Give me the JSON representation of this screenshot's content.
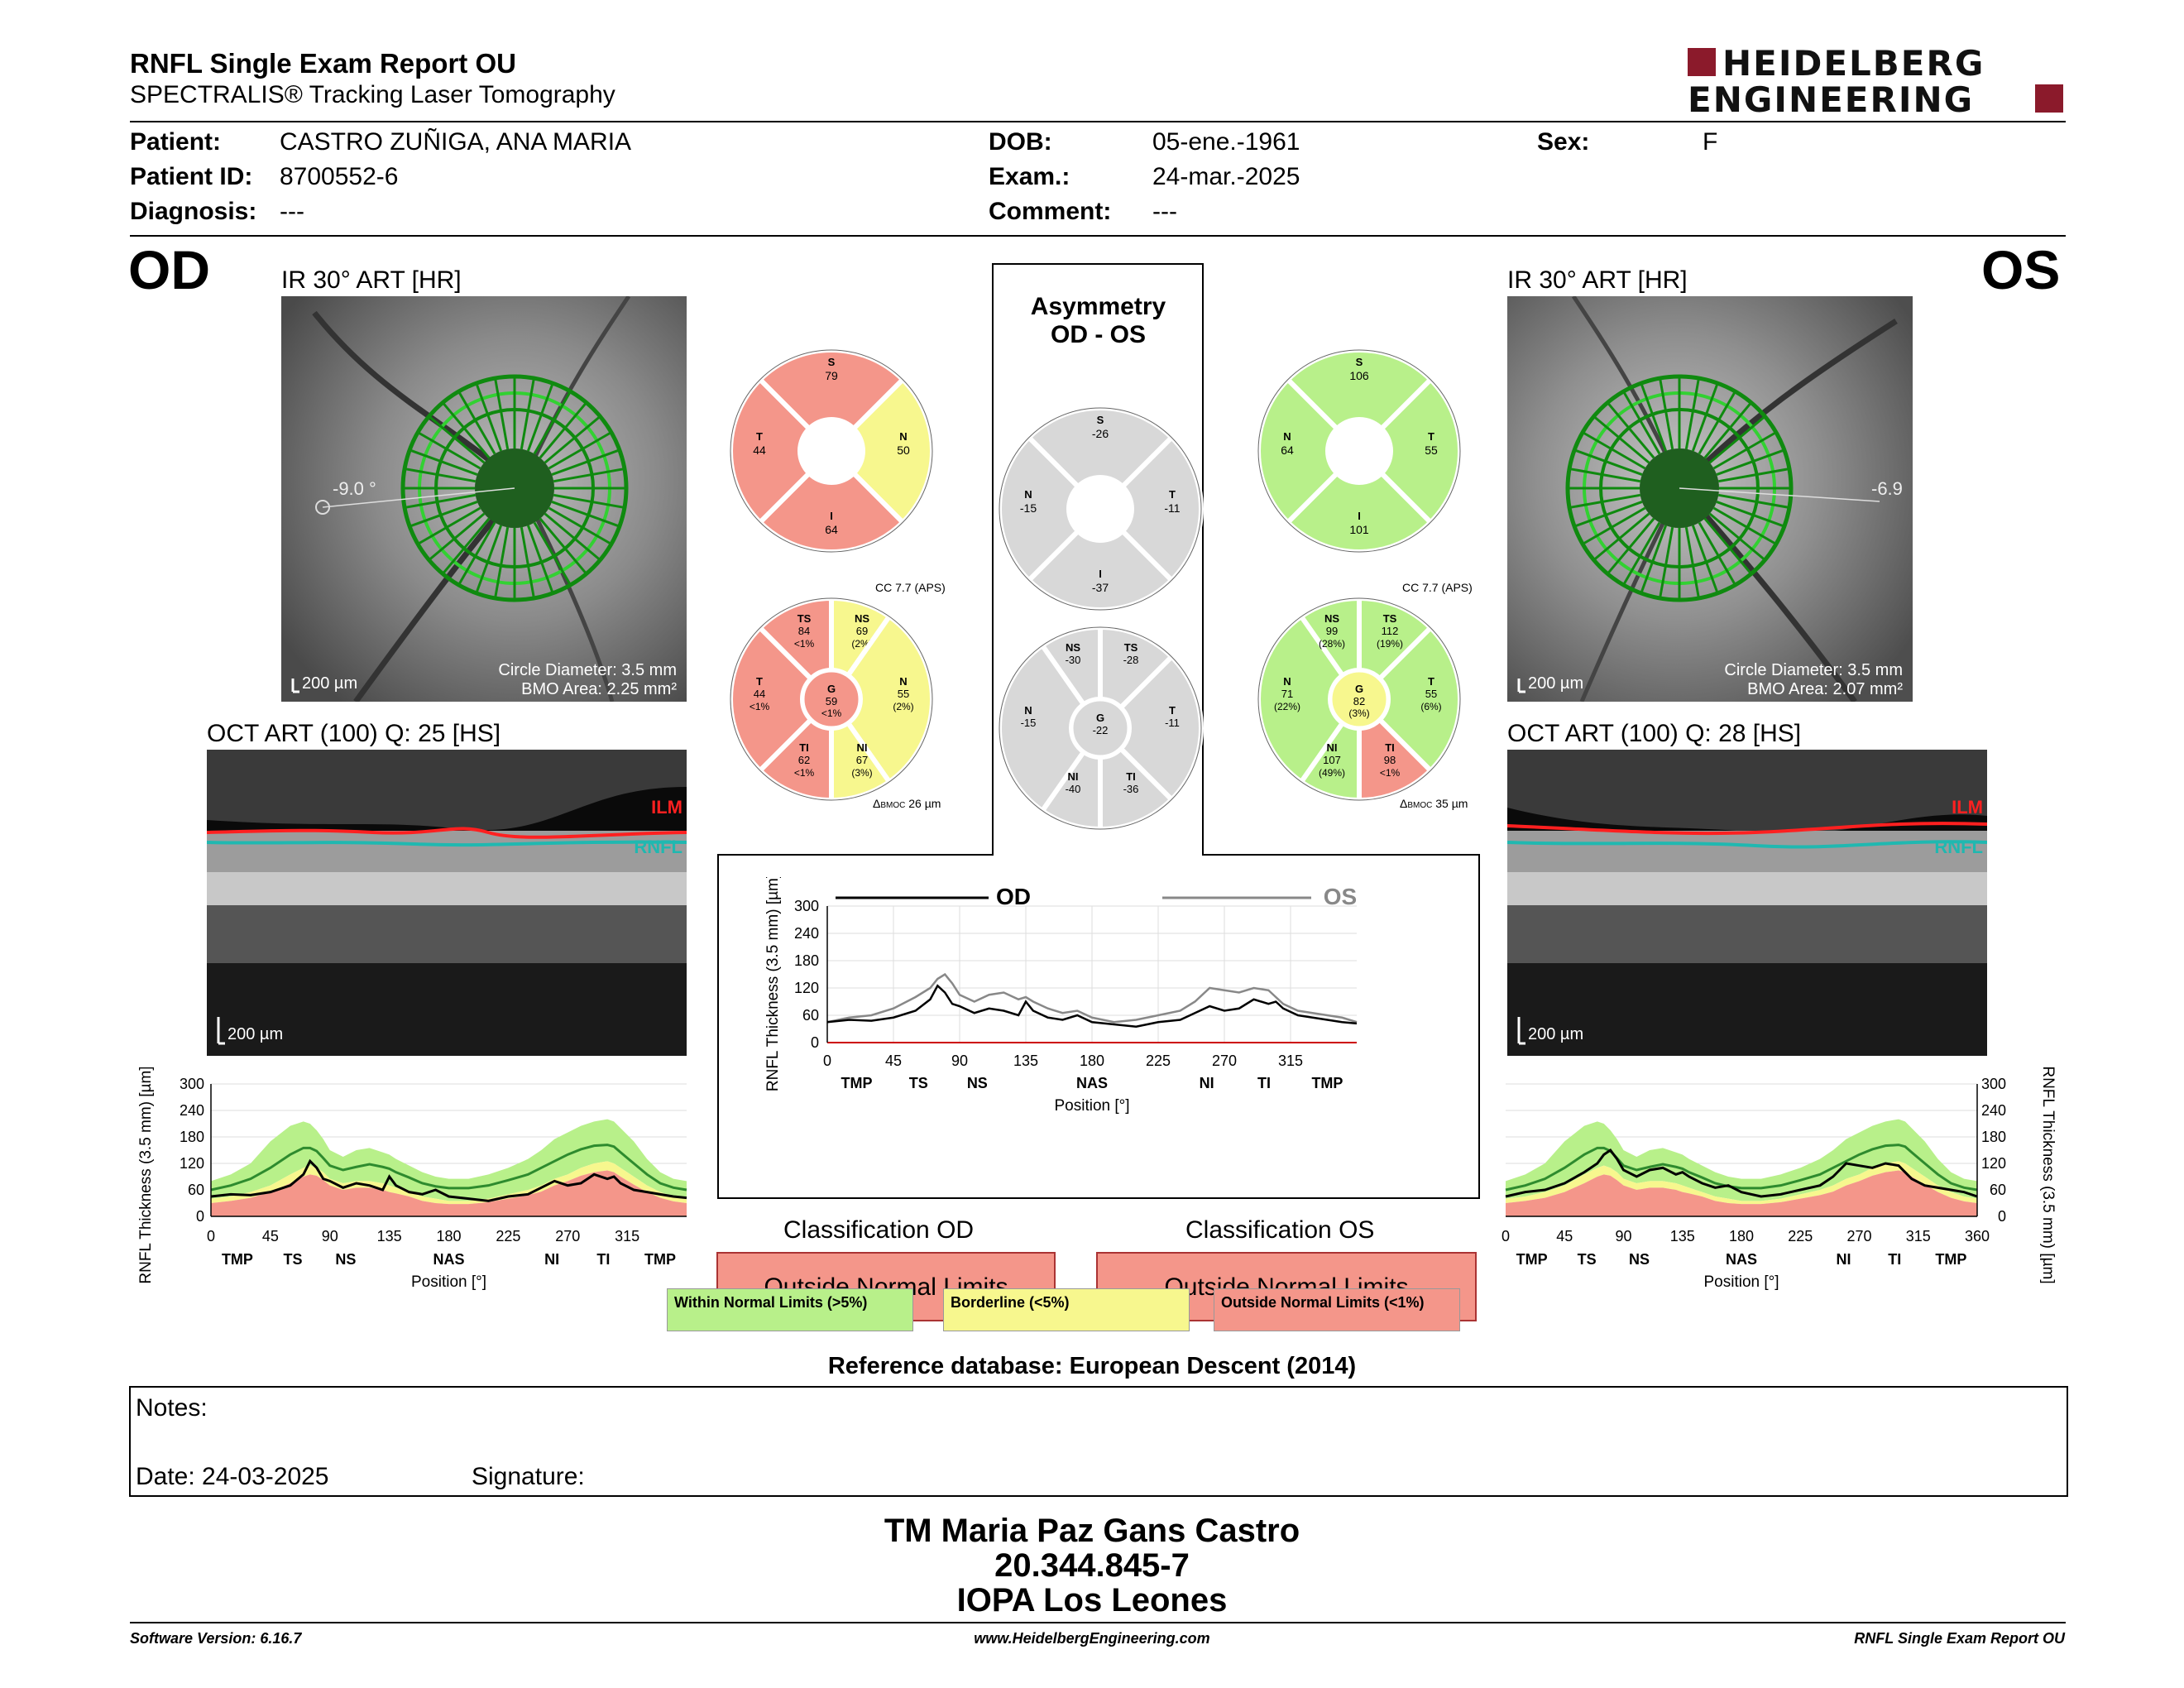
{
  "header": {
    "title": "RNFL Single Exam Report OU",
    "subtitle": "SPECTRALIS® Tracking Laser Tomography",
    "logo_line1": "HEIDELBERG",
    "logo_line2": "ENGINEERING"
  },
  "patient": {
    "patient_label": "Patient:",
    "patient_value": "CASTRO ZUÑIGA, ANA MARIA",
    "id_label": "Patient ID:",
    "id_value": "8700552-6",
    "diag_label": "Diagnosis:",
    "diag_value": "---",
    "dob_label": "DOB:",
    "dob_value": "05-ene.-1961",
    "exam_label": "Exam.:",
    "exam_value": "24-mar.-2025",
    "comment_label": "Comment:",
    "comment_value": "---",
    "sex_label": "Sex:",
    "sex_value": "F"
  },
  "od": {
    "eye": "OD",
    "ir_title": "IR 30° ART [HR]",
    "angle": "-9.0 °",
    "scale": "200 µm",
    "circle_diameter": "Circle Diameter: 3.5 mm",
    "bmo_area": "BMO Area: 2.25 mm²",
    "oct_title": "OCT ART (100) Q: 25 [HS]",
    "oct_scale": "200 µm",
    "ilm": "ILM",
    "rnfl": "RNFL",
    "sectors4": {
      "S": "79",
      "N": "50",
      "I": "64",
      "T": "44"
    },
    "sectors6": {
      "cc": "CC 7.7 (APS)",
      "bmoc": "26 µm",
      "bmoc_label": "BMOC",
      "TS": {
        "v": "84",
        "p": "<1%"
      },
      "NS": {
        "v": "69",
        "p": "(2%)"
      },
      "T": {
        "v": "44",
        "p": "<1%"
      },
      "G": {
        "v": "59",
        "p": "<1%"
      },
      "N": {
        "v": "55",
        "p": "(2%)"
      },
      "TI": {
        "v": "62",
        "p": "<1%"
      },
      "NI": {
        "v": "67",
        "p": "(3%)"
      }
    },
    "classification_title": "Classification OD",
    "classification": "Outside Normal Limits"
  },
  "os": {
    "eye": "OS",
    "ir_title": "IR 30° ART [HR]",
    "angle": "-6.9",
    "scale": "200 µm",
    "circle_diameter": "Circle Diameter: 3.5 mm",
    "bmo_area": "BMO Area: 2.07 mm²",
    "oct_title": "OCT ART (100) Q: 28 [HS]",
    "oct_scale": "200 µm",
    "ilm": "ILM",
    "rnfl": "RNFL",
    "sectors4": {
      "S": "106",
      "N": "64",
      "I": "101",
      "T": "55"
    },
    "sectors6": {
      "cc": "CC 7.7 (APS)",
      "bmoc": "35 µm",
      "bmoc_label": "BMOC",
      "NS": {
        "v": "99",
        "p": "(28%)"
      },
      "TS": {
        "v": "112",
        "p": "(19%)"
      },
      "N": {
        "v": "71",
        "p": "(22%)"
      },
      "G": {
        "v": "82",
        "p": "(3%)"
      },
      "T": {
        "v": "55",
        "p": "(6%)"
      },
      "NI": {
        "v": "107",
        "p": "(49%)"
      },
      "TI": {
        "v": "98",
        "p": "<1%"
      }
    },
    "classification_title": "Classification OS",
    "classification": "Outside Normal Limits"
  },
  "asymmetry": {
    "title1": "Asymmetry",
    "title2": "OD - OS",
    "sectors4": {
      "S": "-26",
      "N": "-15",
      "T": "-11",
      "I": "-37"
    },
    "sectors6": {
      "NS": "-30",
      "TS": "-28",
      "N": "-15",
      "G": "-22",
      "T": "-11",
      "NI": "-40",
      "TI": "-36"
    },
    "legend_od": "OD",
    "legend_os": "OS"
  },
  "chart_data": [
    {
      "type": "line",
      "name": "OD RNFL profile",
      "xlabel": "Position [°]",
      "ylabel": "RNFL Thickness (3.5 mm) [µm]",
      "ylim": [
        0,
        300
      ],
      "xlim": [
        0,
        360
      ],
      "yticks": [
        0,
        60,
        120,
        180,
        240,
        300
      ],
      "xticks": [
        0,
        45,
        90,
        135,
        180,
        225,
        270,
        315
      ],
      "sector_labels": [
        "TMP",
        "TS",
        "NS",
        "NAS",
        "NI",
        "TI",
        "TMP"
      ],
      "sector_label_positions": [
        20,
        62,
        102,
        180,
        258,
        297,
        340
      ],
      "x": [
        0,
        15,
        30,
        45,
        60,
        70,
        75,
        80,
        85,
        90,
        100,
        110,
        120,
        130,
        135,
        140,
        150,
        160,
        170,
        180,
        195,
        210,
        225,
        240,
        250,
        260,
        270,
        280,
        290,
        300,
        305,
        310,
        320,
        330,
        340,
        350,
        360
      ],
      "series": [
        {
          "name": "OD",
          "values": [
            45,
            50,
            48,
            55,
            70,
            95,
            125,
            110,
            85,
            80,
            65,
            75,
            70,
            60,
            90,
            70,
            55,
            50,
            60,
            45,
            40,
            35,
            45,
            50,
            65,
            80,
            70,
            75,
            95,
            85,
            90,
            75,
            60,
            55,
            50,
            45,
            42
          ]
        }
      ],
      "normal_band": {
        "green_upper": [
          80,
          95,
          120,
          170,
          205,
          215,
          210,
          195,
          175,
          150,
          135,
          150,
          155,
          145,
          140,
          130,
          115,
          100,
          90,
          85,
          85,
          95,
          110,
          130,
          150,
          175,
          190,
          205,
          215,
          220,
          215,
          200,
          170,
          130,
          100,
          85,
          80
        ],
        "yellow_upper": [
          40,
          45,
          55,
          70,
          95,
          110,
          115,
          110,
          100,
          85,
          75,
          80,
          80,
          75,
          70,
          65,
          55,
          45,
          40,
          35,
          35,
          40,
          50,
          60,
          70,
          85,
          95,
          110,
          120,
          125,
          120,
          110,
          90,
          70,
          55,
          45,
          40
        ],
        "red_upper": [
          30,
          35,
          42,
          55,
          75,
          90,
          95,
          92,
          82,
          70,
          60,
          65,
          65,
          60,
          55,
          52,
          45,
          35,
          30,
          28,
          28,
          32,
          40,
          48,
          56,
          70,
          80,
          92,
          100,
          104,
          100,
          90,
          72,
          55,
          42,
          34,
          30
        ],
        "mean": [
          60,
          70,
          85,
          110,
          140,
          155,
          155,
          148,
          132,
          115,
          105,
          112,
          118,
          112,
          108,
          100,
          88,
          75,
          68,
          64,
          64,
          70,
          82,
          95,
          110,
          125,
          140,
          152,
          160,
          162,
          158,
          145,
          120,
          95,
          75,
          65,
          60
        ]
      }
    },
    {
      "type": "line",
      "name": "OS RNFL profile",
      "xlabel": "Position [°]",
      "ylabel": "RNFL Thickness (3.5 mm) [µm]",
      "ylim": [
        0,
        300
      ],
      "xlim": [
        0,
        360
      ],
      "yticks": [
        0,
        60,
        120,
        180,
        240,
        300
      ],
      "xticks": [
        0,
        45,
        90,
        135,
        180,
        225,
        270,
        315,
        360
      ],
      "sector_labels": [
        "TMP",
        "TS",
        "NS",
        "NAS",
        "NI",
        "TI",
        "TMP"
      ],
      "sector_label_positions": [
        20,
        62,
        102,
        180,
        258,
        297,
        340
      ],
      "x": [
        0,
        15,
        30,
        45,
        60,
        70,
        75,
        80,
        85,
        90,
        100,
        110,
        120,
        130,
        135,
        140,
        150,
        160,
        170,
        180,
        195,
        210,
        225,
        240,
        250,
        260,
        270,
        280,
        290,
        300,
        305,
        310,
        320,
        330,
        340,
        350,
        360
      ],
      "series": [
        {
          "name": "OS",
          "values": [
            45,
            55,
            60,
            75,
            100,
            120,
            140,
            150,
            130,
            105,
            90,
            105,
            110,
            95,
            100,
            90,
            75,
            65,
            70,
            55,
            45,
            50,
            60,
            70,
            90,
            120,
            115,
            110,
            120,
            115,
            100,
            85,
            70,
            65,
            60,
            55,
            45
          ]
        }
      ],
      "normal_band": {
        "green_upper": [
          80,
          95,
          120,
          170,
          205,
          215,
          210,
          195,
          175,
          150,
          135,
          150,
          155,
          145,
          140,
          130,
          115,
          100,
          90,
          85,
          85,
          95,
          110,
          130,
          150,
          175,
          190,
          205,
          215,
          220,
          215,
          200,
          170,
          130,
          100,
          85,
          80
        ],
        "yellow_upper": [
          40,
          45,
          55,
          70,
          95,
          110,
          115,
          110,
          100,
          85,
          75,
          80,
          80,
          75,
          70,
          65,
          55,
          45,
          40,
          35,
          35,
          40,
          50,
          60,
          70,
          85,
          95,
          110,
          120,
          125,
          120,
          110,
          90,
          70,
          55,
          45,
          40
        ],
        "red_upper": [
          30,
          35,
          42,
          55,
          75,
          90,
          95,
          92,
          82,
          70,
          60,
          65,
          65,
          60,
          55,
          52,
          45,
          35,
          30,
          28,
          28,
          32,
          40,
          48,
          56,
          70,
          80,
          92,
          100,
          104,
          100,
          90,
          72,
          55,
          42,
          34,
          30
        ],
        "mean": [
          60,
          70,
          85,
          110,
          140,
          155,
          155,
          148,
          132,
          115,
          105,
          112,
          118,
          112,
          108,
          100,
          88,
          75,
          68,
          64,
          64,
          70,
          82,
          95,
          110,
          125,
          140,
          152,
          160,
          162,
          158,
          145,
          120,
          95,
          75,
          65,
          60
        ]
      }
    },
    {
      "type": "line",
      "name": "OD vs OS comparison",
      "xlabel": "Position [°]",
      "ylabel": "RNFL Thickness (3.5 mm) [µm]",
      "ylim": [
        0,
        300
      ],
      "xlim": [
        0,
        360
      ],
      "yticks": [
        0,
        60,
        120,
        180,
        240,
        300
      ],
      "xticks": [
        0,
        45,
        90,
        135,
        180,
        225,
        270,
        315
      ],
      "sector_labels": [
        "TMP",
        "TS",
        "NS",
        "NAS",
        "NI",
        "TI",
        "TMP"
      ],
      "sector_label_positions": [
        20,
        62,
        102,
        180,
        258,
        297,
        340
      ],
      "legend": [
        "OD",
        "OS"
      ],
      "grid": true
    }
  ],
  "legend": {
    "within": "Within Normal Limits (>5%)",
    "borderline": "Borderline (<5%)",
    "outside": "Outside Normal Limits (<1%)"
  },
  "reference": "Reference database: European Descent (2014)",
  "notes": {
    "notes_label": "Notes:",
    "date_label": "Date: 24-03-2025",
    "signature_label": "Signature:"
  },
  "signer": {
    "name": "TM Maria Paz Gans Castro",
    "rut": "20.344.845-7",
    "institution": "IOPA Los Leones"
  },
  "footer": {
    "software": "Software Version: 6.16.7",
    "website": "www.HeidelbergEngineering.com",
    "report": "RNFL Single Exam Report OU"
  },
  "colors": {
    "green": "#b8f08a",
    "green_dark": "#2e8b2e",
    "yellow": "#f7f78e",
    "red": "#f4968a",
    "grey": "#d8d8d8",
    "brand": "#8b1a2b"
  }
}
